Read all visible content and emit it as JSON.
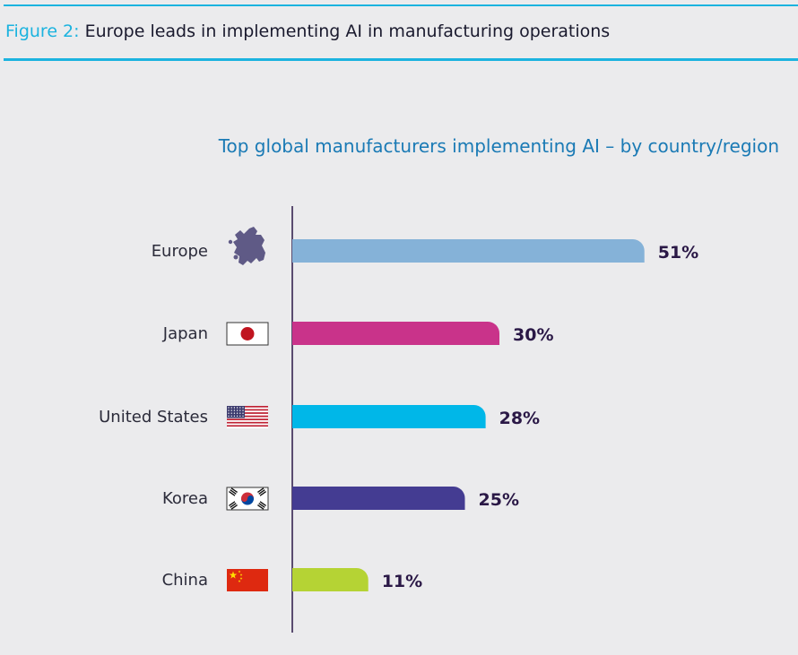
{
  "figure": {
    "label": "Figure 2:",
    "title": "Europe leads in implementing AI in manufacturing operations"
  },
  "chart_data": {
    "type": "bar",
    "orientation": "horizontal",
    "title": "Top global manufacturers implementing AI – by country/region",
    "categories": [
      "Europe",
      "Japan",
      "United States",
      "Korea",
      "China"
    ],
    "values": [
      51,
      30,
      28,
      25,
      11
    ],
    "value_labels": [
      "51%",
      "30%",
      "28%",
      "25%",
      "11%"
    ],
    "colors": [
      "#85b2d8",
      "#c9338a",
      "#00b7e8",
      "#443c92",
      "#b5d334"
    ],
    "icons": [
      "europe-map-icon",
      "japan-flag-icon",
      "us-flag-icon",
      "korea-flag-icon",
      "china-flag-icon"
    ],
    "xlim": [
      0,
      51
    ],
    "grid": false,
    "legend": "none"
  }
}
